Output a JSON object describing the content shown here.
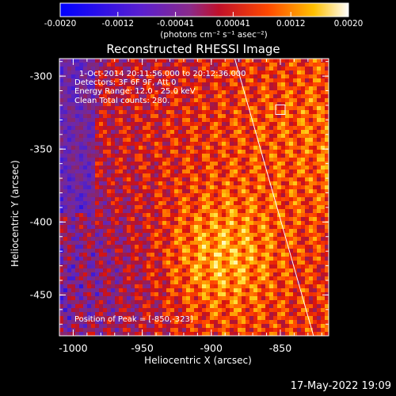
{
  "colorbar": {
    "ticks": [
      "-0.0020",
      "-0.0012",
      "-0.00041",
      "0.00041",
      "0.0012",
      "0.0020"
    ],
    "units_label": "(photons cm⁻² s⁻¹ asec⁻²)"
  },
  "annotations": {
    "time_range": "1-Oct-2014 20:11:56.000 to 20:12:36.000",
    "detectors": "Detectors: 3F 6F 9F, Att 0",
    "energy": "Energy Range: 12.0 - 25.0 keV",
    "clean": "Clean    Total counts: 280.",
    "peak": "Position of Peak = [-850,-323]"
  },
  "footer_date": "17-May-2022 19:09",
  "chart_data": {
    "type": "heatmap",
    "title": "Reconstructed RHESSI Image",
    "xlabel": "Heliocentric X (arcsec)",
    "ylabel": "Heliocentric Y (arcsec)",
    "xlim": [
      -1010,
      -815
    ],
    "ylim": [
      -478,
      -288
    ],
    "x_ticks": [
      "-1000",
      "-950",
      "-900",
      "-850"
    ],
    "y_ticks": [
      "-300",
      "-350",
      "-400",
      "-450"
    ],
    "x_tick_values": [
      -1000,
      -950,
      -900,
      -850
    ],
    "y_tick_values": [
      -300,
      -350,
      -400,
      -450
    ],
    "colorscale": "RHESSI blue-purple-red-yellow-white",
    "value_range": [
      -0.002,
      0.002
    ],
    "peak_position": [
      -850,
      -323
    ],
    "limb_line": {
      "x": [
        -883,
        -826
      ],
      "y": [
        -288,
        -478
      ]
    },
    "grid": false
  }
}
